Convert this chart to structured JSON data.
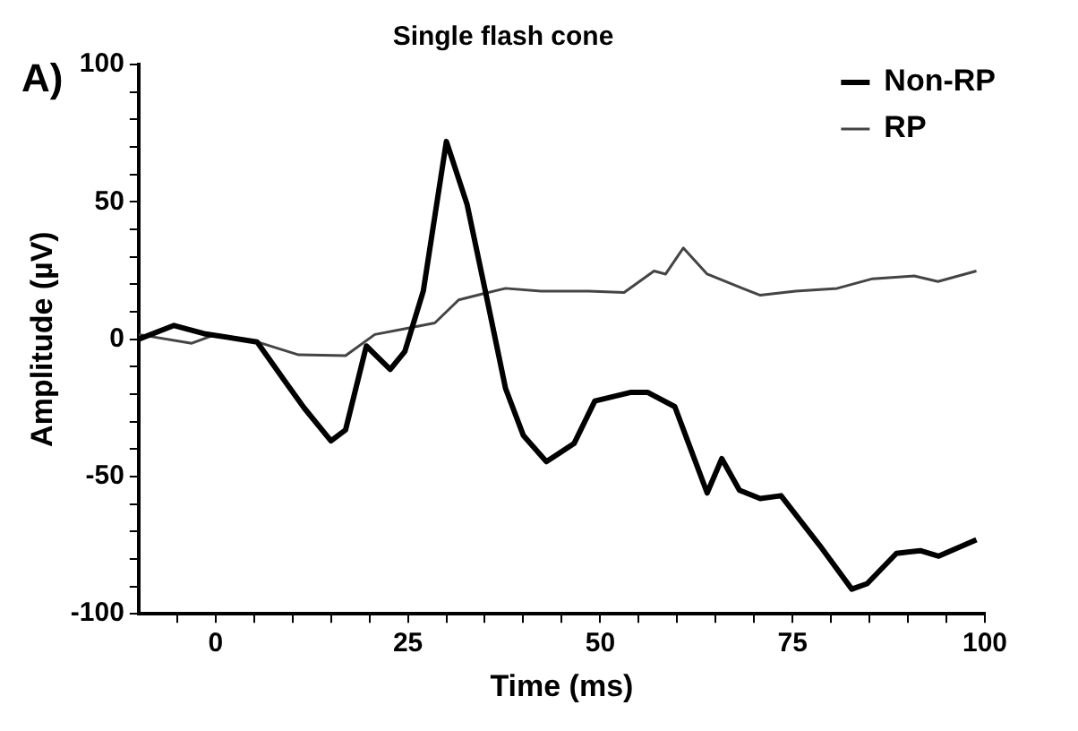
{
  "chart_data": {
    "type": "line",
    "title": "Single flash cone",
    "xlabel": "Time (ms)",
    "ylabel": "Amplitude (µV)",
    "annotations": [
      "A)"
    ],
    "xlim": [
      -10,
      100
    ],
    "xticks": [
      {
        "value": -5,
        "label": null
      },
      0,
      {
        "value": 5,
        "label": null
      },
      {
        "value": 10,
        "label": null
      },
      {
        "value": 15,
        "label": null
      },
      {
        "value": 20,
        "label": null
      },
      25,
      {
        "value": 30,
        "label": null
      },
      {
        "value": 35,
        "label": null
      },
      {
        "value": 40,
        "label": null
      },
      {
        "value": 45,
        "label": null
      },
      50,
      {
        "value": 55,
        "label": null
      },
      {
        "value": 60,
        "label": null
      },
      {
        "value": 65,
        "label": null
      },
      {
        "value": 70,
        "label": null
      },
      75,
      {
        "value": 80,
        "label": null
      },
      {
        "value": 85,
        "label": null
      },
      {
        "value": 90,
        "label": null
      },
      {
        "value": 95,
        "label": null
      },
      100
    ],
    "ylim": [
      -100,
      100
    ],
    "yticks": [
      -100,
      {
        "value": -90,
        "label": null
      },
      {
        "value": -80,
        "label": null
      },
      {
        "value": -70,
        "label": null
      },
      {
        "value": -60,
        "label": null
      },
      -50,
      {
        "value": -40,
        "label": null
      },
      {
        "value": -30,
        "label": null
      },
      {
        "value": -20,
        "label": null
      },
      {
        "value": -10,
        "label": null
      },
      0,
      {
        "value": 10,
        "label": null
      },
      {
        "value": 20,
        "label": null
      },
      {
        "value": 30,
        "label": null
      },
      {
        "value": 40,
        "label": null
      },
      50,
      {
        "value": 60,
        "label": null
      },
      {
        "value": 70,
        "label": null
      },
      {
        "value": 80,
        "label": null
      },
      {
        "value": 90,
        "label": null
      },
      100
    ],
    "grid": false,
    "legend": "top right",
    "marker": "none",
    "line_style": "solid",
    "series": [
      {
        "name": "Non-RP",
        "color": "#000000",
        "x": [
          -10,
          -5.4,
          -1.5,
          5.4,
          9.2,
          11.5,
          15,
          16.9,
          19.6,
          22.7,
          24.6,
          27,
          30,
          32.7,
          35.4,
          37.7,
          40,
          43,
          46.6,
          49.3,
          53.9,
          56.2,
          59.7,
          63.9,
          65.8,
          68.1,
          70.8,
          73.5,
          78.5,
          82.7,
          84.7,
          88.5,
          91.6,
          94,
          98.9
        ],
        "values": [
          0,
          5,
          2,
          -1,
          -16,
          -25,
          -37,
          -33,
          -2.5,
          -11,
          -4.5,
          17.5,
          72,
          49,
          13,
          -18,
          -35,
          -44.6,
          -38,
          -22.5,
          -19.4,
          -19.4,
          -24.6,
          -56,
          -43.5,
          -55,
          -58,
          -57,
          -75,
          -91,
          -89,
          -78,
          -77,
          -79,
          -73
        ]
      },
      {
        "name": "RP",
        "color": "#444444",
        "x": [
          -10,
          -3.1,
          0,
          5.4,
          10.8,
          16.9,
          20.7,
          24.6,
          28.5,
          31.6,
          34.6,
          37.7,
          42.3,
          48.5,
          53.1,
          57,
          58.5,
          60.8,
          63.9,
          68.5,
          70.8,
          75.4,
          80.8,
          85.4,
          90.8,
          93.9,
          98.9
        ],
        "values": [
          1.7,
          -1.5,
          1.7,
          -1,
          -5.7,
          -6,
          1.7,
          3.8,
          5.9,
          14.3,
          16.4,
          18.5,
          17.5,
          17.5,
          17,
          24.8,
          23.7,
          33.2,
          23.7,
          18.5,
          16,
          17.5,
          18.5,
          22,
          23,
          21,
          24.8
        ]
      }
    ]
  }
}
